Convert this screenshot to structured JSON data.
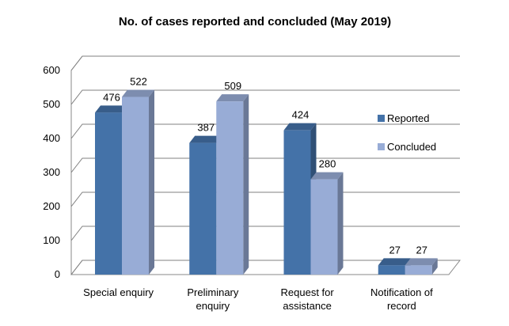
{
  "chart_data": {
    "type": "bar",
    "title": "No. of cases reported and concluded (May 2019)",
    "categories": [
      [
        "Special enquiry"
      ],
      [
        "Preliminary",
        "enquiry"
      ],
      [
        "Request for",
        "assistance"
      ],
      [
        "Notification of",
        "record"
      ]
    ],
    "series": [
      {
        "name": "Reported",
        "values": [
          476,
          387,
          424,
          27
        ],
        "color": "#4472A8"
      },
      {
        "name": "Concluded",
        "values": [
          522,
          509,
          280,
          27
        ],
        "color": "#98ACD6"
      }
    ],
    "yticks": [
      0,
      100,
      200,
      300,
      400,
      500,
      600
    ],
    "ylim": [
      0,
      600
    ],
    "grid": true,
    "legend_position": "right",
    "style": "3d-clustered-column"
  }
}
